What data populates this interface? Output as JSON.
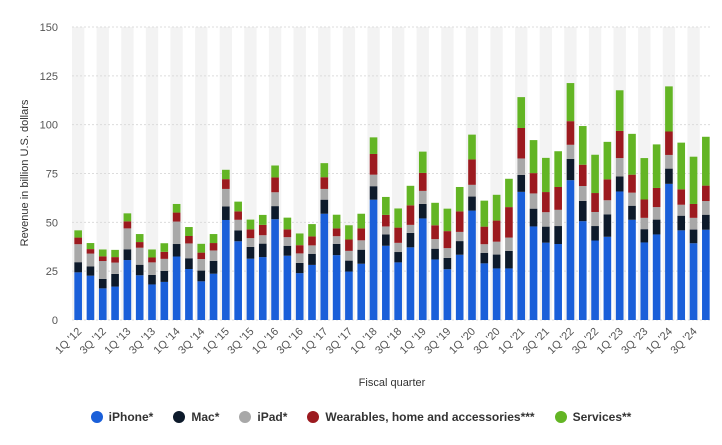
{
  "chart_data": {
    "type": "bar",
    "stacked": true,
    "xlabel": "Fiscal quarter",
    "ylabel": "Revenue in billion U.S. dollars",
    "ylim": [
      0,
      150
    ],
    "yticks": [
      0,
      25,
      50,
      75,
      100,
      125,
      150
    ],
    "grid": true,
    "legend_position": "bottom",
    "categories": [
      "1Q '12",
      "2Q '12",
      "3Q '12",
      "4Q '12",
      "1Q '13",
      "2Q '13",
      "3Q '13",
      "4Q '13",
      "1Q '14",
      "2Q '14",
      "3Q '14",
      "4Q '14",
      "1Q '15",
      "2Q '15",
      "3Q '15",
      "4Q '15",
      "1Q '16",
      "2Q '16",
      "3Q '16",
      "4Q '16",
      "1Q '17",
      "2Q '17",
      "3Q '17",
      "4Q '17",
      "1Q '18",
      "2Q '18",
      "3Q '18",
      "4Q '18",
      "1Q '19",
      "2Q '19",
      "3Q '19",
      "4Q '19",
      "1Q '20",
      "2Q '20",
      "3Q '20",
      "4Q '20",
      "1Q '21",
      "2Q '21",
      "3Q '21",
      "4Q '21",
      "1Q '22",
      "2Q '22",
      "3Q '22",
      "4Q '22",
      "1Q '23",
      "2Q '23",
      "3Q '23",
      "4Q '23",
      "1Q '24",
      "2Q '24",
      "3Q '24",
      "4Q '24"
    ],
    "xtick_labels": [
      "1Q '12",
      "3Q '12",
      "1Q '13",
      "3Q '13",
      "1Q '14",
      "3Q '14",
      "1Q '15",
      "3Q '15",
      "1Q '16",
      "3Q '16",
      "1Q '17",
      "3Q '17",
      "1Q '18",
      "3Q '18",
      "1Q '19",
      "3Q '19",
      "1Q '20",
      "3Q '20",
      "1Q '21",
      "3Q '21",
      "1Q '22",
      "3Q '22",
      "1Q '23",
      "3Q '23",
      "1Q '24",
      "3Q '24"
    ],
    "series": [
      {
        "name": "iPhone*",
        "color": "#1a5fd9",
        "values": [
          24.4,
          22.7,
          16.2,
          17.1,
          30.7,
          22.9,
          18.2,
          19.5,
          32.5,
          26.1,
          19.8,
          23.7,
          51.2,
          40.3,
          31.4,
          32.2,
          51.6,
          32.9,
          24.0,
          28.2,
          54.4,
          33.2,
          24.8,
          28.8,
          61.6,
          38.0,
          29.5,
          37.2,
          52.0,
          31.0,
          26.0,
          33.4,
          56.0,
          29.0,
          26.4,
          26.4,
          65.6,
          47.9,
          39.6,
          38.9,
          71.6,
          50.6,
          40.7,
          42.6,
          65.8,
          51.3,
          39.7,
          43.8,
          69.7,
          45.9,
          39.3,
          46.2
        ]
      },
      {
        "name": "Mac*",
        "color": "#0d1a2b",
        "values": [
          5.2,
          4.7,
          4.8,
          6.5,
          5.5,
          5.4,
          4.9,
          5.6,
          6.4,
          5.5,
          5.5,
          6.6,
          6.9,
          5.6,
          6.0,
          6.9,
          6.7,
          5.1,
          5.2,
          5.7,
          7.2,
          5.8,
          5.6,
          7.2,
          6.9,
          5.8,
          5.3,
          7.4,
          7.4,
          5.5,
          5.8,
          7.0,
          7.2,
          5.4,
          7.1,
          9.0,
          8.7,
          9.1,
          8.2,
          9.2,
          10.9,
          10.4,
          7.4,
          11.5,
          7.7,
          7.2,
          6.8,
          7.6,
          7.8,
          7.5,
          7.0,
          7.7
        ]
      },
      {
        "name": "iPad*",
        "color": "#a8a8a8",
        "values": [
          9.2,
          6.6,
          9.2,
          5.8,
          10.7,
          8.7,
          6.4,
          6.2,
          11.5,
          7.6,
          5.9,
          5.3,
          9.0,
          5.4,
          4.5,
          4.3,
          7.1,
          4.4,
          4.9,
          4.3,
          5.5,
          3.9,
          5.0,
          4.8,
          5.9,
          4.1,
          4.7,
          4.1,
          6.7,
          4.9,
          5.0,
          4.7,
          6.0,
          4.4,
          6.6,
          6.8,
          8.4,
          7.8,
          7.4,
          8.3,
          7.2,
          7.6,
          7.2,
          7.2,
          9.4,
          6.7,
          5.8,
          6.4,
          7.0,
          5.6,
          6.0,
          7.0
        ]
      },
      {
        "name": "Wearables, home and accessories***",
        "color": "#9c1a1f",
        "values": [
          3.4,
          2.3,
          2.4,
          2.8,
          3.6,
          2.9,
          2.5,
          3.6,
          4.6,
          3.8,
          3.3,
          3.8,
          5.0,
          4.3,
          4.5,
          5.3,
          7.6,
          4.0,
          4.2,
          4.6,
          6.0,
          4.0,
          5.8,
          6.1,
          10.6,
          5.9,
          7.8,
          10.0,
          9.2,
          7.1,
          8.7,
          10.5,
          13.0,
          9.0,
          10.8,
          15.6,
          15.6,
          10.4,
          10.3,
          11.7,
          12.1,
          10.9,
          9.7,
          10.7,
          13.9,
          9.2,
          9.4,
          9.8,
          12.0,
          7.9,
          7.1,
          7.9
        ]
      },
      {
        "name": "Services**",
        "color": "#63b524",
        "values": [
          3.7,
          3.1,
          3.5,
          3.7,
          4.1,
          4.1,
          4.1,
          4.4,
          4.4,
          4.6,
          4.5,
          4.6,
          4.8,
          5.0,
          5.0,
          5.1,
          6.1,
          6.0,
          6.0,
          6.3,
          7.2,
          7.0,
          7.3,
          7.5,
          8.5,
          9.2,
          9.8,
          10.0,
          10.9,
          11.5,
          11.5,
          12.5,
          12.7,
          13.3,
          13.2,
          14.5,
          15.8,
          16.9,
          17.5,
          18.3,
          19.5,
          19.8,
          19.6,
          19.2,
          20.8,
          20.9,
          21.2,
          22.3,
          23.1,
          23.9,
          24.2,
          25.0
        ]
      }
    ]
  },
  "legend": {
    "items": [
      {
        "label": "iPhone*",
        "color": "#1a5fd9"
      },
      {
        "label": "Mac*",
        "color": "#0d1a2b"
      },
      {
        "label": "iPad*",
        "color": "#a8a8a8"
      },
      {
        "label": "Wearables, home and accessories***",
        "color": "#9c1a1f"
      },
      {
        "label": "Services**",
        "color": "#63b524"
      }
    ]
  }
}
